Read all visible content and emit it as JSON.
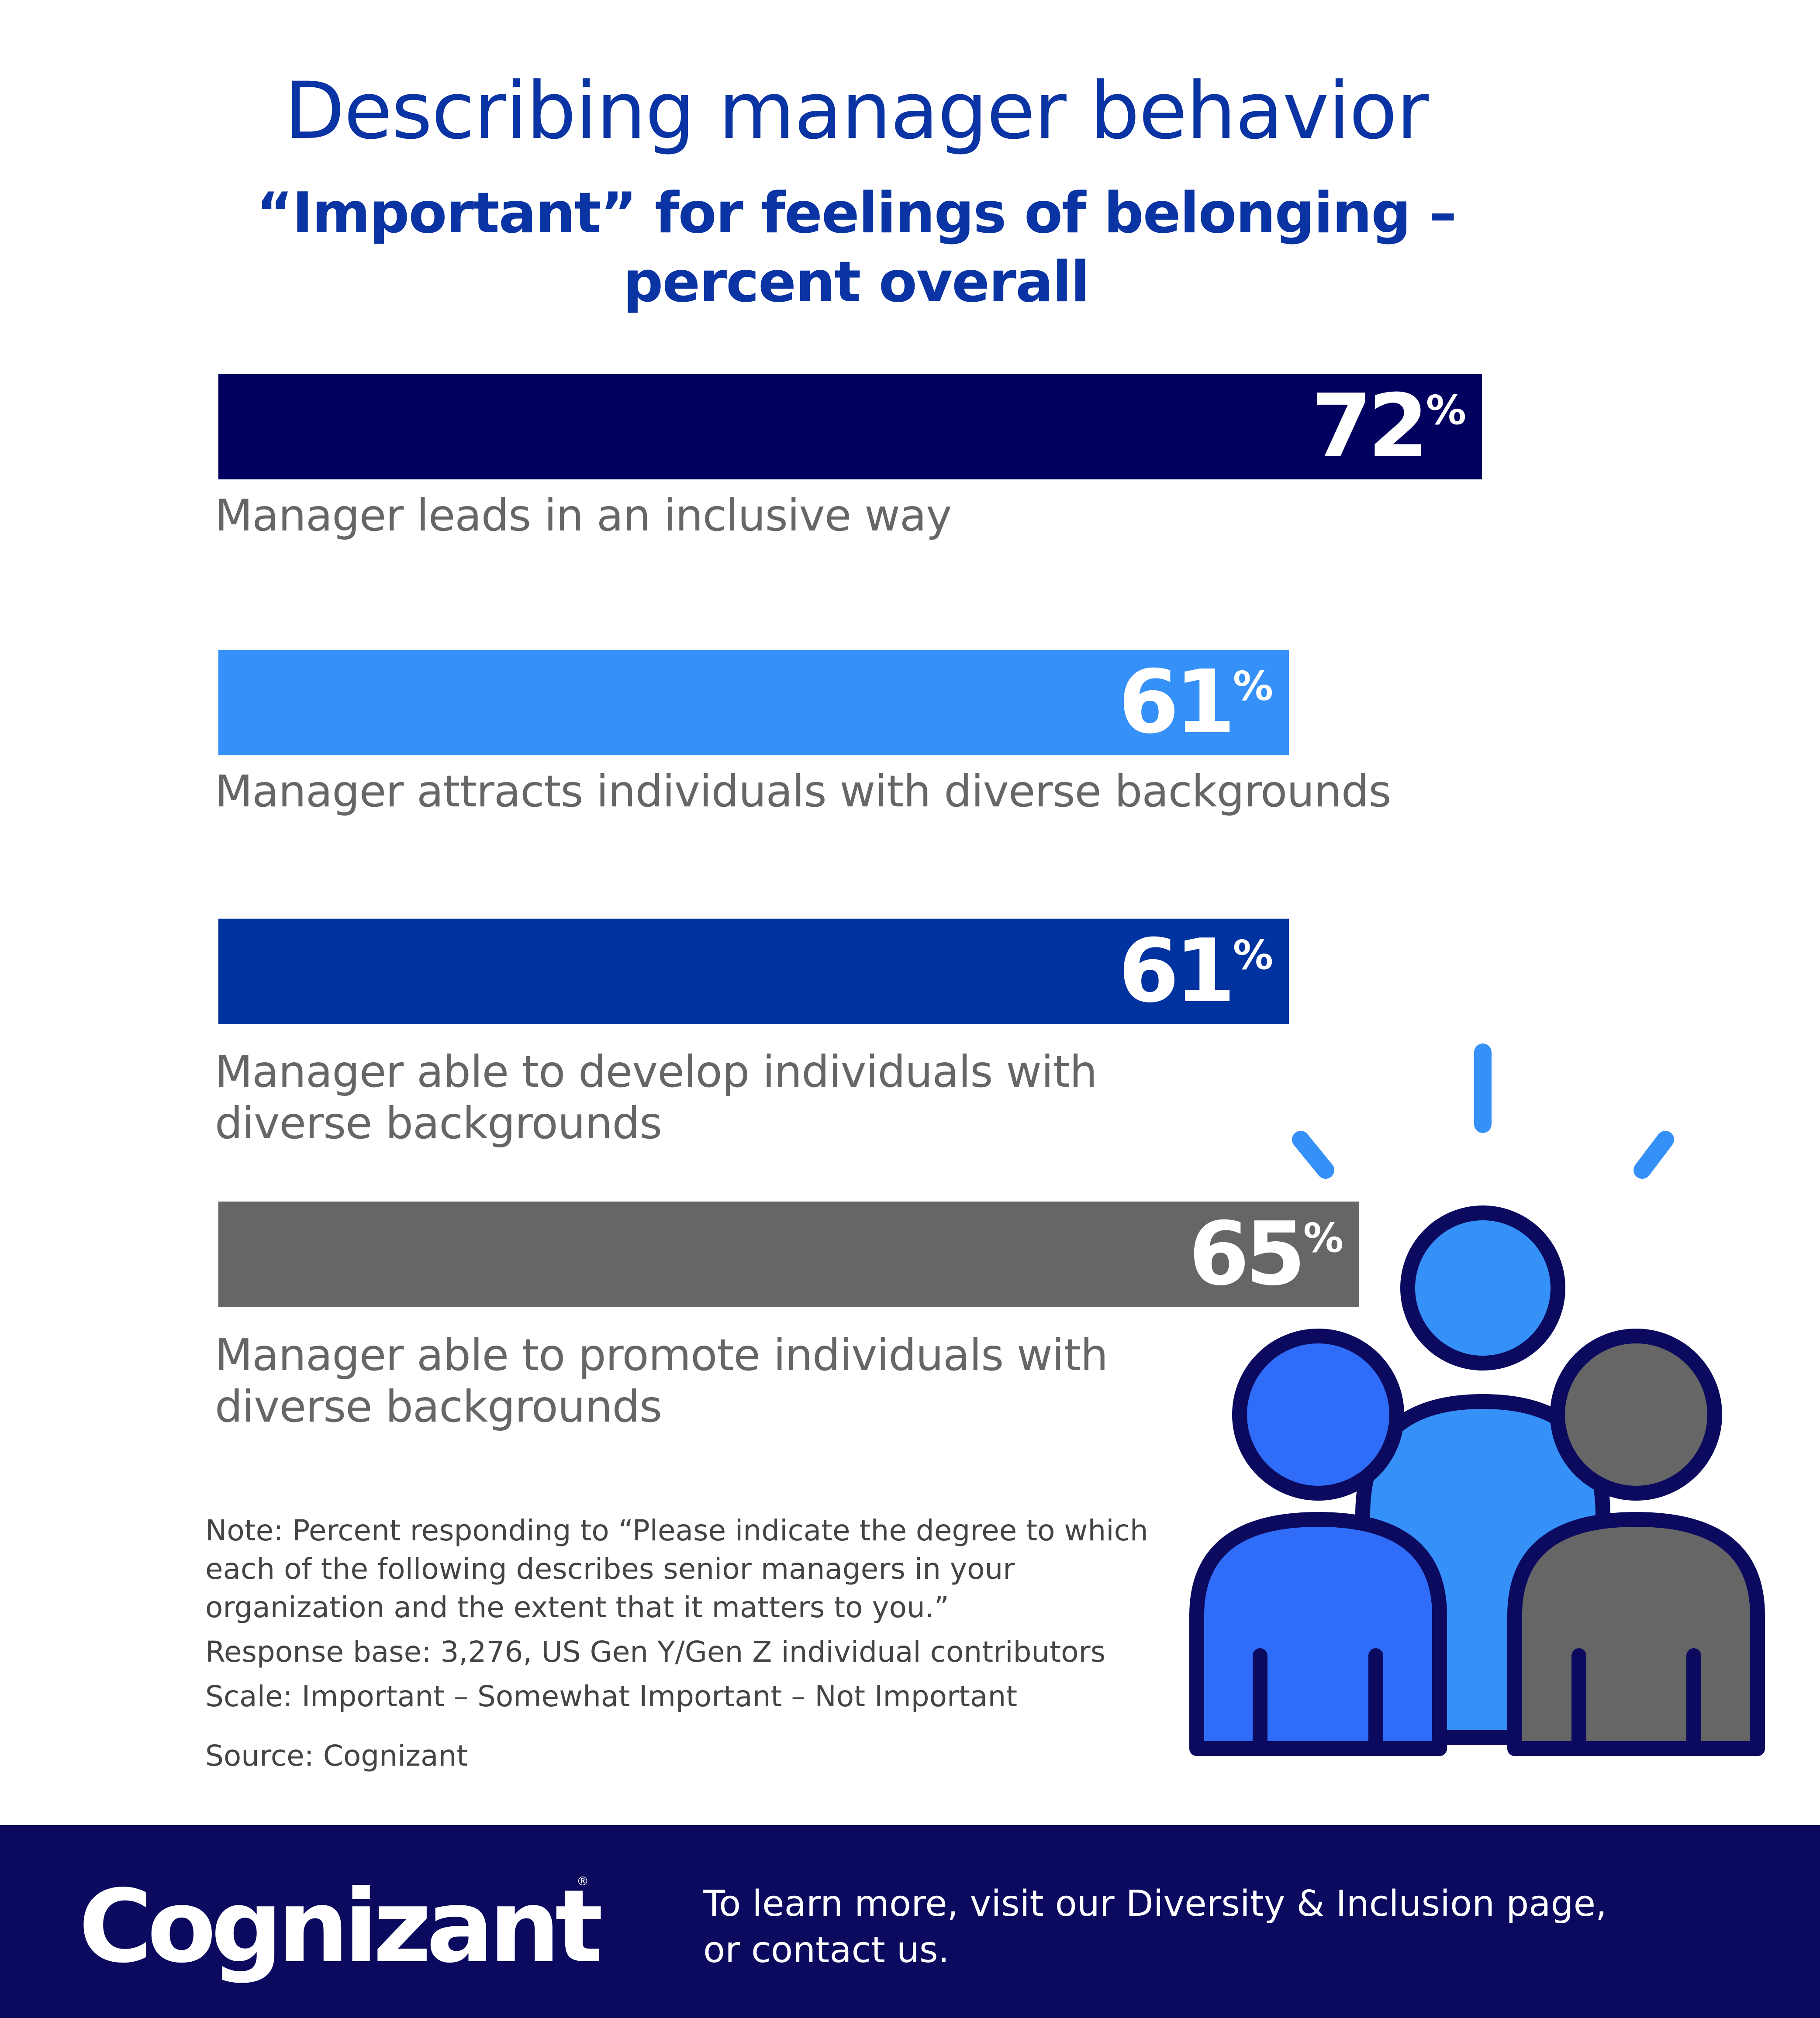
{
  "chart_data": {
    "type": "bar",
    "orientation": "horizontal",
    "title": "Describing manager behavior",
    "subtitle_line1": "“Important” for feelings of belonging –",
    "subtitle_line2": "percent overall",
    "value_suffix": "%",
    "xlim": [
      0,
      100
    ],
    "categories": [
      [
        "Manager leads in an inclusive way"
      ],
      [
        "Manager attracts individuals with diverse backgrounds"
      ],
      [
        "Manager able to develop individuals with",
        "diverse backgrounds"
      ],
      [
        "Manager able to promote individuals with",
        "diverse backgrounds"
      ]
    ],
    "values": [
      72,
      61,
      61,
      65
    ],
    "colors": [
      "#02005e",
      "#3590f8",
      "#0032a0",
      "#666666"
    ]
  },
  "notes": {
    "note_line1": "Note: Percent responding to “Please indicate the degree to which",
    "note_line2": "each of the following describes senior managers in your",
    "note_line3": "organization and the extent that it matters to you.”",
    "response_base": "Response base: 3,276, US Gen Y/Gen Z individual contributors",
    "scale": "Scale: Important – Somewhat Important – Not Important",
    "source": "Source: Cognizant"
  },
  "footer": {
    "logo_text": "Cognizant",
    "logo_mark": "®",
    "cta_line1": "To learn more, visit our Diversity & Inclusion page,",
    "cta_line2": "or contact us."
  },
  "illustration": {
    "icon": "team-people-icon",
    "outline_color": "#0b0a5e",
    "center_color": "#3590f8",
    "left_color": "#2f6cf7",
    "right_color": "#666666"
  }
}
